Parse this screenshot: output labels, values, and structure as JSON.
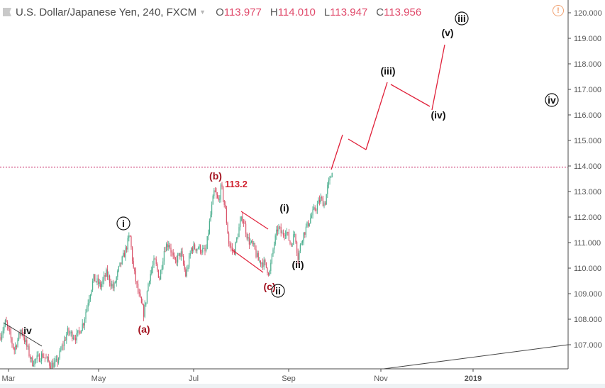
{
  "header": {
    "symbol": "U.S. Dollar/Japanese Yen, 240, FXCM",
    "caret": "▼",
    "ohlc": [
      {
        "key": "O",
        "value": "113.977"
      },
      {
        "key": "H",
        "value": "114.010"
      },
      {
        "key": "L",
        "value": "113.947"
      },
      {
        "key": "C",
        "value": "113.956"
      }
    ],
    "alert_icon": "!"
  },
  "colors": {
    "up_candle": "#4caf8f",
    "down_candle": "#d9536a",
    "wave_line": "#e0213a",
    "red_label": "#a3121f",
    "price_line": "#c2185b",
    "axis": "#4a4a4a",
    "trendline": "#333333"
  },
  "chart_data": {
    "type": "candlestick",
    "title": "U.S. Dollar/Japanese Yen, 240, FXCM",
    "ylim": [
      106.1,
      120.2
    ],
    "y_ticks": [
      "120.000",
      "119.000",
      "118.000",
      "117.000",
      "116.000",
      "115.000",
      "114.000",
      "113.000",
      "112.000",
      "111.000",
      "110.000",
      "109.000",
      "108.000",
      "107.000"
    ],
    "x_ticks": [
      "Mar",
      "May",
      "Jul",
      "Sep",
      "Nov",
      "2019"
    ],
    "current_price_line": 113.956,
    "price_path_approx": [
      {
        "t": "Mar",
        "price": 107.5
      },
      {
        "t": "late Mar",
        "price": 106.3
      },
      {
        "t": "Apr",
        "price": 107.3
      },
      {
        "t": "mid Apr",
        "price": 109.3
      },
      {
        "t": "May",
        "price": 109.5
      },
      {
        "t": "late May",
        "price": 111.3
      },
      {
        "t": "Jun",
        "price": 108.2
      },
      {
        "t": "mid Jun",
        "price": 110.8
      },
      {
        "t": "early Jul",
        "price": 110.5
      },
      {
        "t": "mid Jul",
        "price": 113.2
      },
      {
        "t": "late Jul",
        "price": 110.7
      },
      {
        "t": "Aug",
        "price": 112.0
      },
      {
        "t": "late Aug",
        "price": 109.8
      },
      {
        "t": "early Sep",
        "price": 111.8
      },
      {
        "t": "Sep",
        "price": 110.4
      },
      {
        "t": "late Sep",
        "price": 114.0
      }
    ],
    "wave_labels": [
      {
        "label": "iv",
        "style": "plain",
        "price": 107.4
      },
      {
        "label": "i",
        "style": "circled",
        "price": 111.6
      },
      {
        "label": "(a)",
        "style": "red",
        "price": 107.9
      },
      {
        "label": "(b)",
        "style": "red",
        "price": 113.4
      },
      {
        "label": "113.2",
        "style": "red",
        "price": 113.2
      },
      {
        "label": "(c)",
        "style": "red",
        "price": 109.2
      },
      {
        "label": "ii",
        "style": "circled",
        "price": 109.0
      },
      {
        "label": "(i)",
        "style": "plain",
        "price": 112.2
      },
      {
        "label": "(ii)",
        "style": "plain",
        "price": 110.0
      },
      {
        "label": "(iii)",
        "style": "plain",
        "price": 117.5
      },
      {
        "label": "(iv)",
        "style": "plain",
        "price": 116.0
      },
      {
        "label": "(v)",
        "style": "plain",
        "price": 119.3
      },
      {
        "label": "iii",
        "style": "circled",
        "price": 119.9
      },
      {
        "label": "iv",
        "style": "circled",
        "price": 116.6
      }
    ],
    "projection": [
      114.0,
      115.2,
      114.6,
      117.4,
      116.2,
      118.7
    ],
    "grid": false
  },
  "axis": {
    "y_labels": [
      "120.000",
      "119.000",
      "118.000",
      "117.000",
      "116.000",
      "115.000",
      "114.000",
      "113.000",
      "112.000",
      "111.000",
      "110.000",
      "109.000",
      "108.000",
      "107.000"
    ],
    "x_labels": [
      "Mar",
      "May",
      "Jul",
      "Sep",
      "Nov",
      "2019"
    ]
  }
}
